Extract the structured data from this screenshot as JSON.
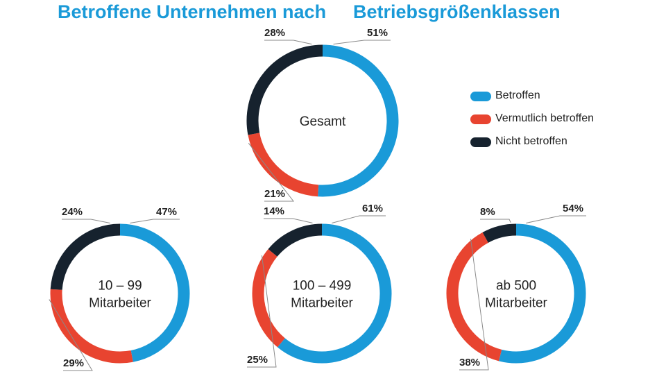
{
  "title": {
    "part1": "Betroffene Unternehmen nach",
    "part2": "Betriebsgrößenklassen"
  },
  "colors": {
    "betroffen": "#1a9ad8",
    "vermutlich_betroffen": "#e84430",
    "nicht_betroffen": "#16222e",
    "title": "#1a9ad8",
    "text": "#222222"
  },
  "legend": [
    {
      "label": "Betroffen",
      "color": "#1a9ad8"
    },
    {
      "label": "Vermutlich betroffen",
      "color": "#e84430"
    },
    {
      "label": "Nicht betroffen",
      "color": "#16222e"
    }
  ],
  "chart_data": {
    "type": "pie",
    "variant": "donut",
    "legend_position": "right",
    "categories": [
      "Betroffen",
      "Vermutlich betroffen",
      "Nicht betroffen"
    ],
    "charts": [
      {
        "center_label": [
          "Gesamt"
        ],
        "values": [
          51,
          21,
          28
        ],
        "value_labels": [
          "51%",
          "21%",
          "28%"
        ]
      },
      {
        "center_label": [
          "10 – 99",
          "Mitarbeiter"
        ],
        "values": [
          47,
          29,
          24
        ],
        "value_labels": [
          "47%",
          "29%",
          "24%"
        ]
      },
      {
        "center_label": [
          "100 – 499",
          "Mitarbeiter"
        ],
        "values": [
          61,
          25,
          14
        ],
        "value_labels": [
          "61%",
          "25%",
          "14%"
        ]
      },
      {
        "center_label": [
          "ab 500",
          "Mitarbeiter"
        ],
        "values": [
          54,
          38,
          8
        ],
        "value_labels": [
          "54%",
          "38%",
          "8%"
        ]
      }
    ]
  }
}
